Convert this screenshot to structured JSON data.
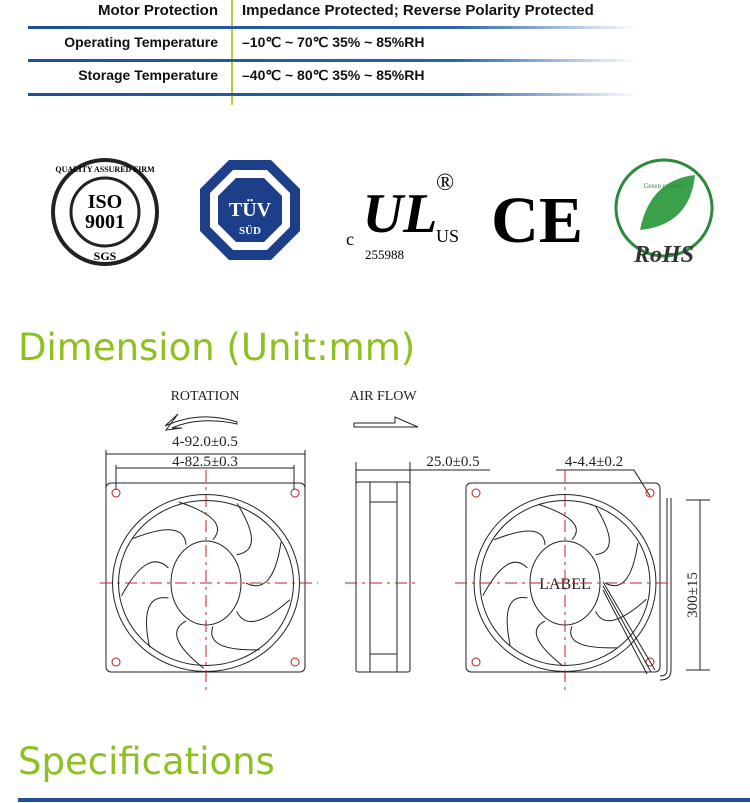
{
  "spec_table": {
    "rows": [
      {
        "label": "Motor Protection",
        "value": "Impedance Protected; Reverse Polarity Protected"
      },
      {
        "label": "Operating Temperature",
        "value": "–10℃ ~ 70℃   35%  ~  85%RH"
      },
      {
        "label": "Storage Temperature",
        "value": "–40℃ ~ 80℃   35%  ~  85%RH"
      }
    ]
  },
  "certifications": {
    "iso": {
      "top": "QUALITY ASSURED FIRM",
      "line1": "ISO",
      "line2": "9001",
      "bottom": "SGS"
    },
    "tuv": {
      "line1": "TÜV",
      "line2": "SÜD"
    },
    "ul": {
      "mark": "UL",
      "c": "c",
      "us": "US",
      "number": "255988",
      "registered": "®"
    },
    "ce": {
      "mark": "CE"
    },
    "rohs": {
      "mark": "RoHS",
      "arc": "Green product"
    }
  },
  "dimension": {
    "title": "Dimension (Unit:mm)",
    "rotation_label": "ROTATION",
    "airflow_label": "AIR FLOW",
    "outer_size": "4-92.0±0.5",
    "hole_spacing": "4-82.5±0.3",
    "thickness": "25.0±0.5",
    "hole_diameter": "4-4.4±0.2",
    "lead_length": "300±15",
    "label_text": "LABEL"
  },
  "specifications_title": "Specifications",
  "colors": {
    "accent_green": "#8cc11f",
    "rule_blue": "#1f4f9a"
  }
}
